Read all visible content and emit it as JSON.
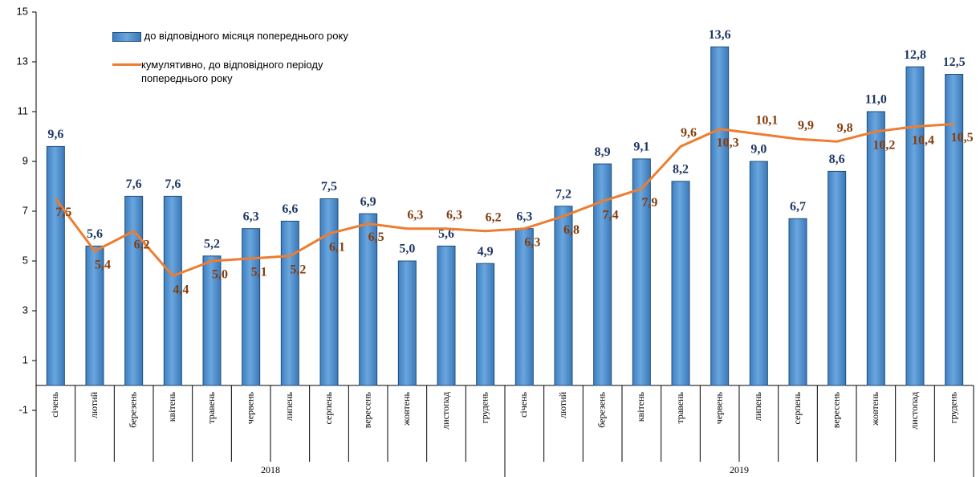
{
  "chart_data": {
    "type": "bar_line",
    "categories": [
      "січень",
      "лютий",
      "березень",
      "квітень",
      "травень",
      "червень",
      "липень",
      "серпень",
      "вересень",
      "жовтень",
      "листопад",
      "грудень",
      "січень",
      "лютий",
      "березень",
      "квітень",
      "травень",
      "червень",
      "липень",
      "серпень",
      "вересень",
      "жовтень",
      "листопад",
      "грудень"
    ],
    "years": [
      "2018",
      "2019"
    ],
    "series": [
      {
        "name": "до відповідного місяця попереднього року",
        "type": "bar",
        "color": "#5b9bd5",
        "values": [
          9.6,
          5.6,
          7.6,
          7.6,
          5.2,
          6.3,
          6.6,
          7.5,
          6.9,
          5.0,
          5.6,
          4.9,
          6.3,
          7.2,
          8.9,
          9.1,
          8.2,
          13.6,
          9.0,
          6.7,
          8.6,
          11.0,
          12.8,
          12.5
        ],
        "value_labels": [
          "9,6",
          "5,6",
          "7,6",
          "7,6",
          "5,2",
          "6,3",
          "6,6",
          "7,5",
          "6,9",
          "5,0",
          "5,6",
          "4,9",
          "6,3",
          "7,2",
          "8,9",
          "9,1",
          "8,2",
          "13,6",
          "9,0",
          "6,7",
          "8,6",
          "11,0",
          "12,8",
          "12,5"
        ]
      },
      {
        "name": "кумулятивно, до відповідного періоду попереднього року",
        "type": "line",
        "color": "#ed7d31",
        "values": [
          7.5,
          5.4,
          6.2,
          4.4,
          5.0,
          5.1,
          5.2,
          6.1,
          6.5,
          6.3,
          6.3,
          6.2,
          6.3,
          6.8,
          7.4,
          7.9,
          9.6,
          10.3,
          10.1,
          9.9,
          9.8,
          10.2,
          10.4,
          10.5
        ],
        "value_labels": [
          "7,5",
          "5,4",
          "6,2",
          "4,4",
          "5,0",
          "5,1",
          "5,2",
          "6,1",
          "6,5",
          "6,3",
          "6,3",
          "6,2",
          "6,3",
          "6,8",
          "7,4",
          "7,9",
          "9,6",
          "10,3",
          "10,1",
          "9,9",
          "9,8",
          "10,2",
          "10,4",
          "10,5"
        ]
      }
    ],
    "ylim": [
      -1,
      15
    ],
    "yticks": [
      -1,
      1,
      3,
      5,
      7,
      9,
      11,
      13,
      15
    ]
  }
}
